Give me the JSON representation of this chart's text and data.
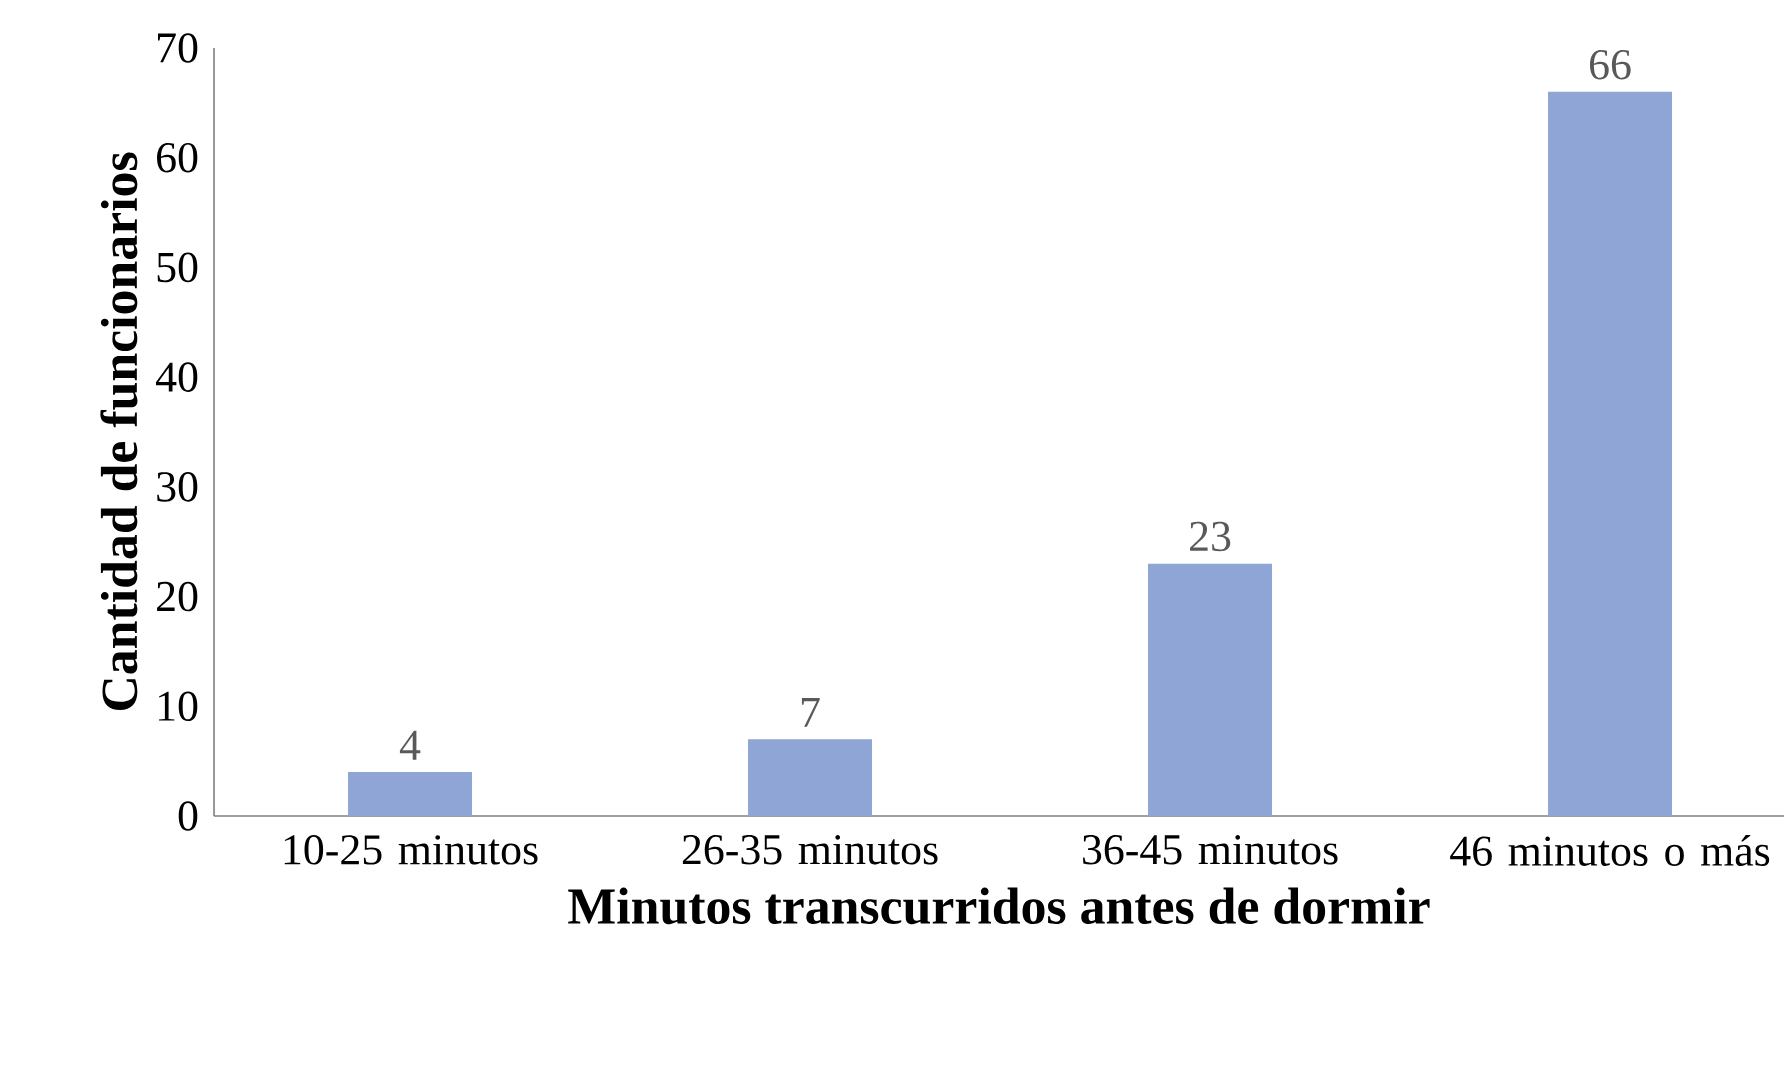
{
  "chart_data": {
    "type": "bar",
    "xlabel": "Minutos transcurridos antes de dormir",
    "ylabel": "Cantidad de funcionarios",
    "categories": [
      "10-25 minutos",
      "26-35 minutos",
      "36-45 minutos",
      "46 minutos o más"
    ],
    "values": [
      4,
      7,
      23,
      66
    ],
    "color": "#8fa5d6",
    "ylim": [
      0,
      70
    ],
    "yticks": [
      0,
      10,
      20,
      30,
      40,
      50,
      60,
      70
    ],
    "data_labels": true
  }
}
